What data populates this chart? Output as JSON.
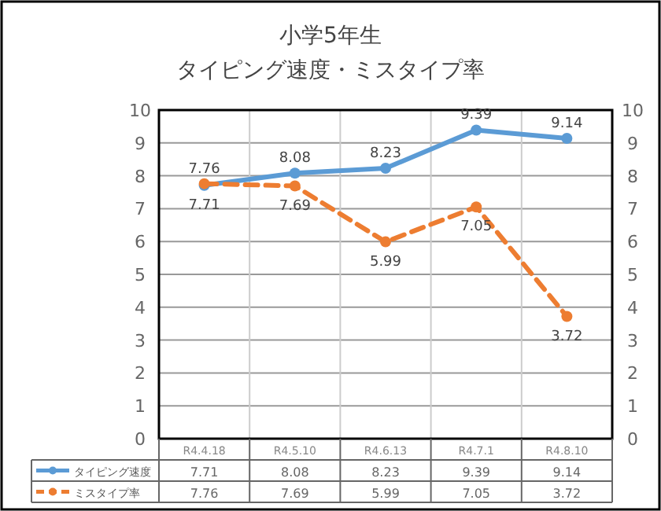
{
  "chart_data": {
    "type": "line",
    "title": "小学5年生",
    "subtitle": "タイピング速度・ミスタイプ率",
    "categories": [
      "R4.4.18",
      "R4.5.10",
      "R4.6.13",
      "R4.7.1",
      "R4.8.10"
    ],
    "series": [
      {
        "name": "タイピング速度",
        "color": "#5b9bd5",
        "values": [
          7.71,
          8.08,
          8.23,
          9.39,
          9.14
        ],
        "line_style": "solid",
        "marker": "circle"
      },
      {
        "name": "ミスタイプ率",
        "color": "#ed7d31",
        "values": [
          7.76,
          7.69,
          5.99,
          7.05,
          3.72
        ],
        "line_style": "dashed",
        "marker": "circle"
      }
    ],
    "ylim": [
      0,
      10
    ],
    "yticks": [
      0,
      1,
      2,
      3,
      4,
      5,
      6,
      7,
      8,
      9,
      10
    ],
    "y2lim": [
      0,
      10
    ],
    "y2ticks": [
      0,
      1,
      2,
      3,
      4,
      5,
      6,
      7,
      8,
      9,
      10
    ],
    "annotations": [
      {
        "text": "7.71",
        "x": "R4.4.18",
        "y": 7.71
      },
      {
        "text": "8.08",
        "x": "R4.5.10",
        "y": 8.08
      },
      {
        "text": "8.23",
        "x": "R4.6.13",
        "y": 8.23
      },
      {
        "text": "9.39",
        "x": "R4.7.1",
        "y": 9.39
      },
      {
        "text": "9.14",
        "x": "R4.8.10",
        "y": 9.14
      },
      {
        "text": "7.76",
        "x": "R4.4.18",
        "y": 7.76
      },
      {
        "text": "7.69",
        "x": "R4.5.10",
        "y": 7.69
      },
      {
        "text": "5.99",
        "x": "R4.6.13",
        "y": 5.99
      },
      {
        "text": "7.05",
        "x": "R4.7.1",
        "y": 7.05
      },
      {
        "text": "3.72",
        "x": "R4.8.10",
        "y": 3.72
      }
    ],
    "grid": true,
    "legend": "bottom",
    "data_labels": true
  }
}
